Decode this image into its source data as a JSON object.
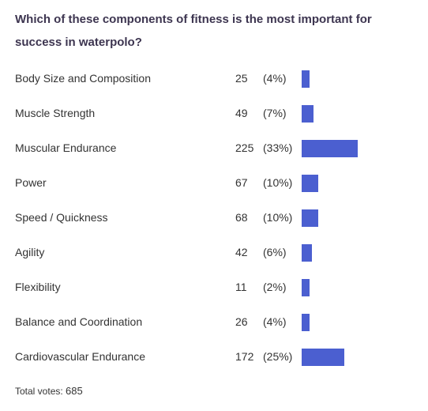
{
  "poll": {
    "question": "Which of these components of fitness is the most important for success in waterpolo?",
    "total_label": "Total votes:",
    "total_votes": "685",
    "bar_color": "#4b5fd0"
  },
  "chart_data": {
    "type": "bar",
    "orientation": "horizontal",
    "categories": [
      "Body Size and Composition",
      "Muscle Strength",
      "Muscular Endurance",
      "Power",
      "Speed / Quickness",
      "Agility",
      "Flexibility",
      "Balance and Coordination",
      "Cardiovascular Endurance"
    ],
    "values": [
      25,
      49,
      225,
      67,
      68,
      42,
      11,
      26,
      172
    ],
    "percent_labels": [
      "(4%)",
      "(7%)",
      "(33%)",
      "(10%)",
      "(10%)",
      "(6%)",
      "(2%)",
      "(4%)",
      "(25%)"
    ],
    "title": "Which of these components of fitness is the most important for success in waterpolo?"
  }
}
